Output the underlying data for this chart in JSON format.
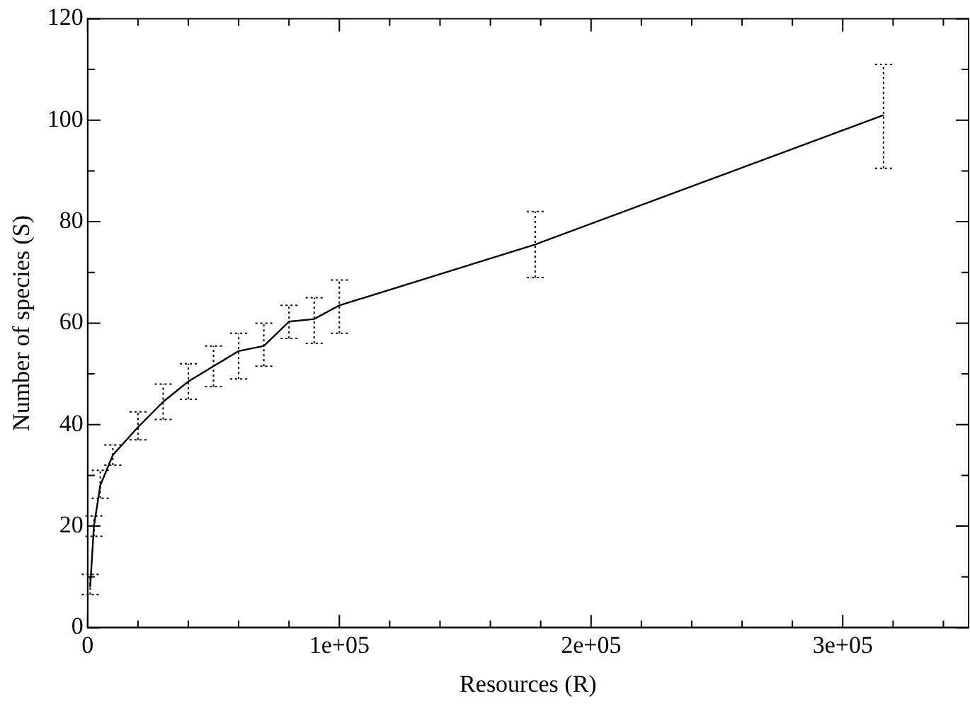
{
  "chart_data": {
    "type": "line",
    "xlabel": "Resources (R)",
    "ylabel": "Number of species (S)",
    "x": [
      1000,
      2500,
      5000,
      10000,
      20000,
      30000,
      40000,
      50000,
      60000,
      70000,
      80000,
      90000,
      100000,
      177800,
      316200
    ],
    "series": [
      {
        "color": "#000000",
        "values": [
          8,
          20,
          28,
          34,
          39.5,
          44.5,
          48.5,
          51.5,
          54.5,
          55.5,
          60.3,
          60.8,
          63.5,
          75.5,
          101
        ],
        "errors": [
          [
            6.5,
            10.5
          ],
          [
            18,
            22
          ],
          [
            25.5,
            31
          ],
          [
            32,
            36
          ],
          [
            37,
            42.5
          ],
          [
            41,
            48
          ],
          [
            45,
            52
          ],
          [
            47.5,
            55.5
          ],
          [
            49,
            58
          ],
          [
            51.5,
            60
          ],
          [
            57,
            63.5
          ],
          [
            56,
            65
          ],
          [
            58,
            68.5
          ],
          [
            69,
            82
          ],
          [
            90.5,
            111
          ]
        ]
      }
    ],
    "xlim": [
      0,
      350000
    ],
    "ylim": [
      0,
      120
    ],
    "xticks": [
      0,
      {
        "value": 20000,
        "label": null
      },
      {
        "value": 40000,
        "label": null
      },
      {
        "value": 60000,
        "label": null
      },
      {
        "value": 80000,
        "label": null
      },
      {
        "value": 100000,
        "label": "1e+05"
      },
      {
        "value": 120000,
        "label": null
      },
      {
        "value": 140000,
        "label": null
      },
      {
        "value": 160000,
        "label": null
      },
      {
        "value": 180000,
        "label": null
      },
      {
        "value": 200000,
        "label": "2e+05"
      },
      {
        "value": 220000,
        "label": null
      },
      {
        "value": 240000,
        "label": null
      },
      {
        "value": 260000,
        "label": null
      },
      {
        "value": 280000,
        "label": null
      },
      {
        "value": 300000,
        "label": "3e+05"
      },
      {
        "value": 320000,
        "label": null
      },
      {
        "value": 340000,
        "label": null
      }
    ],
    "yticks": [
      0,
      {
        "value": 10,
        "label": null
      },
      20,
      {
        "value": 30,
        "label": null
      },
      40,
      {
        "value": 50,
        "label": null
      },
      60,
      {
        "value": 70,
        "label": null
      },
      80,
      {
        "value": 90,
        "label": null
      },
      100,
      {
        "value": 110,
        "label": null
      },
      120
    ],
    "grid": false,
    "legend": false,
    "marker": "none",
    "line_style": "solid"
  }
}
